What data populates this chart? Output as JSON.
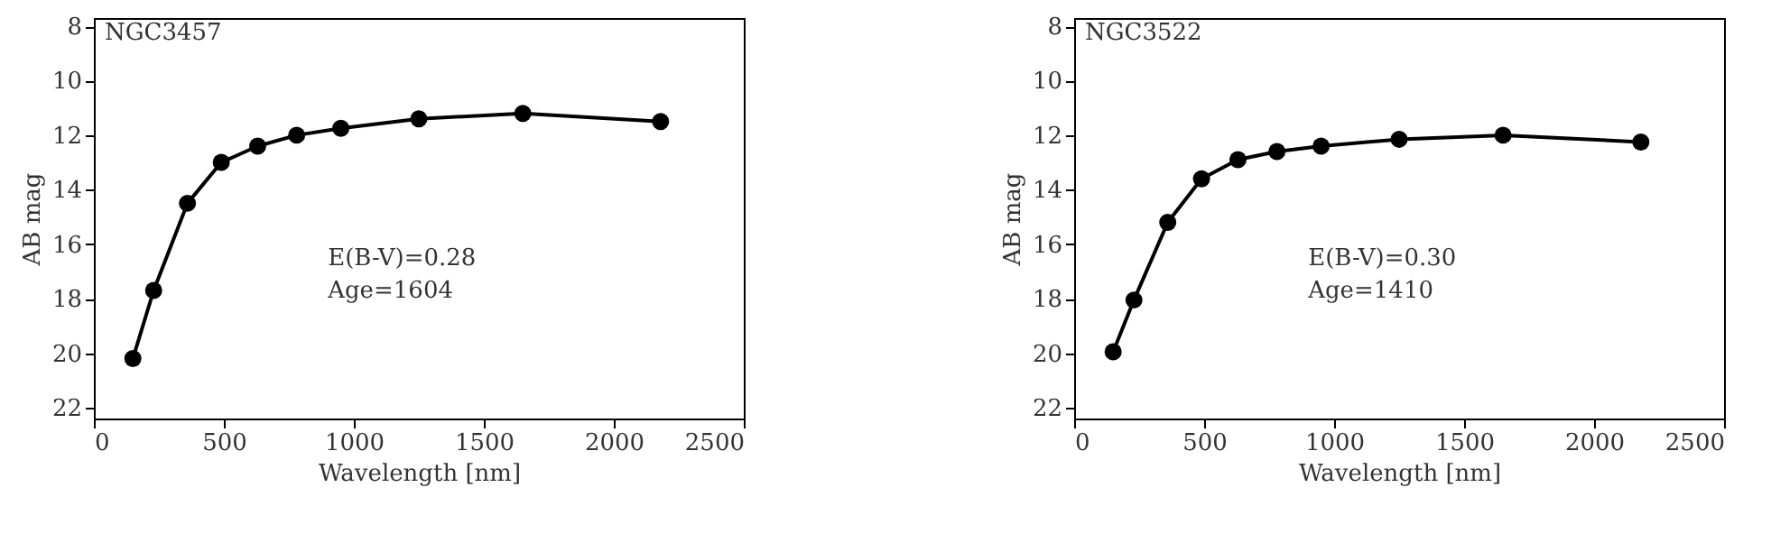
{
  "chart_data": [
    {
      "type": "line",
      "title": "NGC3457",
      "xlabel": "Wavelength [nm]",
      "ylabel": "AB mag",
      "x": [
        150,
        230,
        360,
        490,
        630,
        780,
        950,
        1250,
        1650,
        2180
      ],
      "series": [
        {
          "color": "#000000",
          "values": [
            20.2,
            17.7,
            14.5,
            13.0,
            12.4,
            12.0,
            11.75,
            11.4,
            11.2,
            11.5
          ]
        }
      ],
      "xlim": [
        0,
        2500
      ],
      "xticks": [
        0,
        500,
        1000,
        1500,
        2000,
        2500
      ],
      "ylim": [
        22.4,
        7.7
      ],
      "yticks": [
        8,
        10,
        12,
        14,
        16,
        18,
        20,
        22
      ],
      "marker": "circle",
      "line_style": "solid",
      "grid": false,
      "annotations": [
        "E(B-V)=0.28",
        "Age=1604"
      ]
    },
    {
      "type": "line",
      "title": "NGC3522",
      "xlabel": "Wavelength [nm]",
      "ylabel": "AB mag",
      "x": [
        150,
        230,
        360,
        490,
        630,
        780,
        950,
        1250,
        1650,
        2180
      ],
      "series": [
        {
          "color": "#000000",
          "values": [
            19.95,
            18.05,
            15.2,
            13.6,
            12.9,
            12.6,
            12.4,
            12.15,
            12.0,
            12.25
          ]
        }
      ],
      "xlim": [
        0,
        2500
      ],
      "xticks": [
        0,
        500,
        1000,
        1500,
        2000,
        2500
      ],
      "ylim": [
        22.4,
        7.7
      ],
      "yticks": [
        8,
        10,
        12,
        14,
        16,
        18,
        20,
        22
      ],
      "marker": "circle",
      "line_style": "solid",
      "grid": false,
      "annotations": [
        "E(B-V)=0.30",
        "Age=1410"
      ]
    }
  ]
}
